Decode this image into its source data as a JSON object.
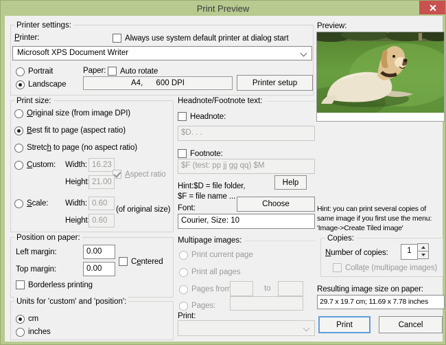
{
  "window": {
    "title": "Print Preview"
  },
  "colors": {
    "titlebar": "#b7ca90",
    "close_button": "#c85250",
    "dialog_bg": "#f0f0f0",
    "focus_border": "#5e9ede"
  },
  "printer_settings": {
    "group_label": "Printer settings:",
    "printer_label": "Printer:",
    "always_default_checkbox": "Always use system default printer at dialog start",
    "printer_dropdown_value": "Microsoft XPS Document Writer",
    "portrait": "Portrait",
    "landscape": "Landscape",
    "paper_label": "Paper:",
    "auto_rotate": "Auto rotate",
    "paper_value": "A4,      600 DPI",
    "printer_setup_button": "Printer setup"
  },
  "print_size": {
    "group_label": "Print size:",
    "original": "Original size (from image DPI)",
    "best_fit": "Best fit to page (aspect ratio)",
    "stretch": "Stretch to page (no aspect ratio)",
    "custom": "Custom:",
    "scale": "Scale:",
    "width_label": "Width:",
    "height_label": "Height:",
    "custom_width": "16.23",
    "custom_height": "21.00",
    "aspect_ratio": "Aspect ratio",
    "scale_width": "0.60",
    "scale_height": "0.60",
    "of_original": "(of original size)"
  },
  "position": {
    "group_label": "Position on paper:",
    "left_margin_label": "Left margin:",
    "left_margin": "0.00",
    "top_margin_label": "Top margin:",
    "top_margin": "0.00",
    "centered": "Centered",
    "borderless": "Borderless printing"
  },
  "units": {
    "group_label": "Units for 'custom' and 'position':",
    "cm": "cm",
    "inches": "inches"
  },
  "headnote_footnote": {
    "section_label": "Headnote/Footnote text:",
    "headnote_checkbox": "Headnote:",
    "headnote_value": "$D. . .",
    "footnote_checkbox": "Footnote:",
    "footnote_value": "$F (test: pp jj gg qq) $M",
    "hint_line1": "Hint:$D = file folder,",
    "hint_line2": "$F = file name ...",
    "help_button": "Help",
    "font_label": "Font:",
    "choose_button": "Choose",
    "font_value": "Courier, Size: 10"
  },
  "multipage": {
    "section_label": "Multipage images:",
    "current": "Print current page",
    "all": "Print all pages",
    "from": "Pages from:",
    "to": "to",
    "pages": "Pages:",
    "print_label": "Print:"
  },
  "preview": {
    "label": "Preview:"
  },
  "tiled_hint": {
    "line1": "Hint: you can print several copies of",
    "line2": "same image if you first use the menu:",
    "line3": "'Image->Create Tiled image'"
  },
  "copies": {
    "group_label": "Copies:",
    "number_label": "Number of copies:",
    "number_value": "1",
    "collate": "Collate (multipage images)"
  },
  "result": {
    "label": "Resulting image size on paper:",
    "value": "29.7 x 19.7 cm; 11.69 x 7.78 inches"
  },
  "actions": {
    "print": "Print",
    "cancel": "Cancel"
  }
}
